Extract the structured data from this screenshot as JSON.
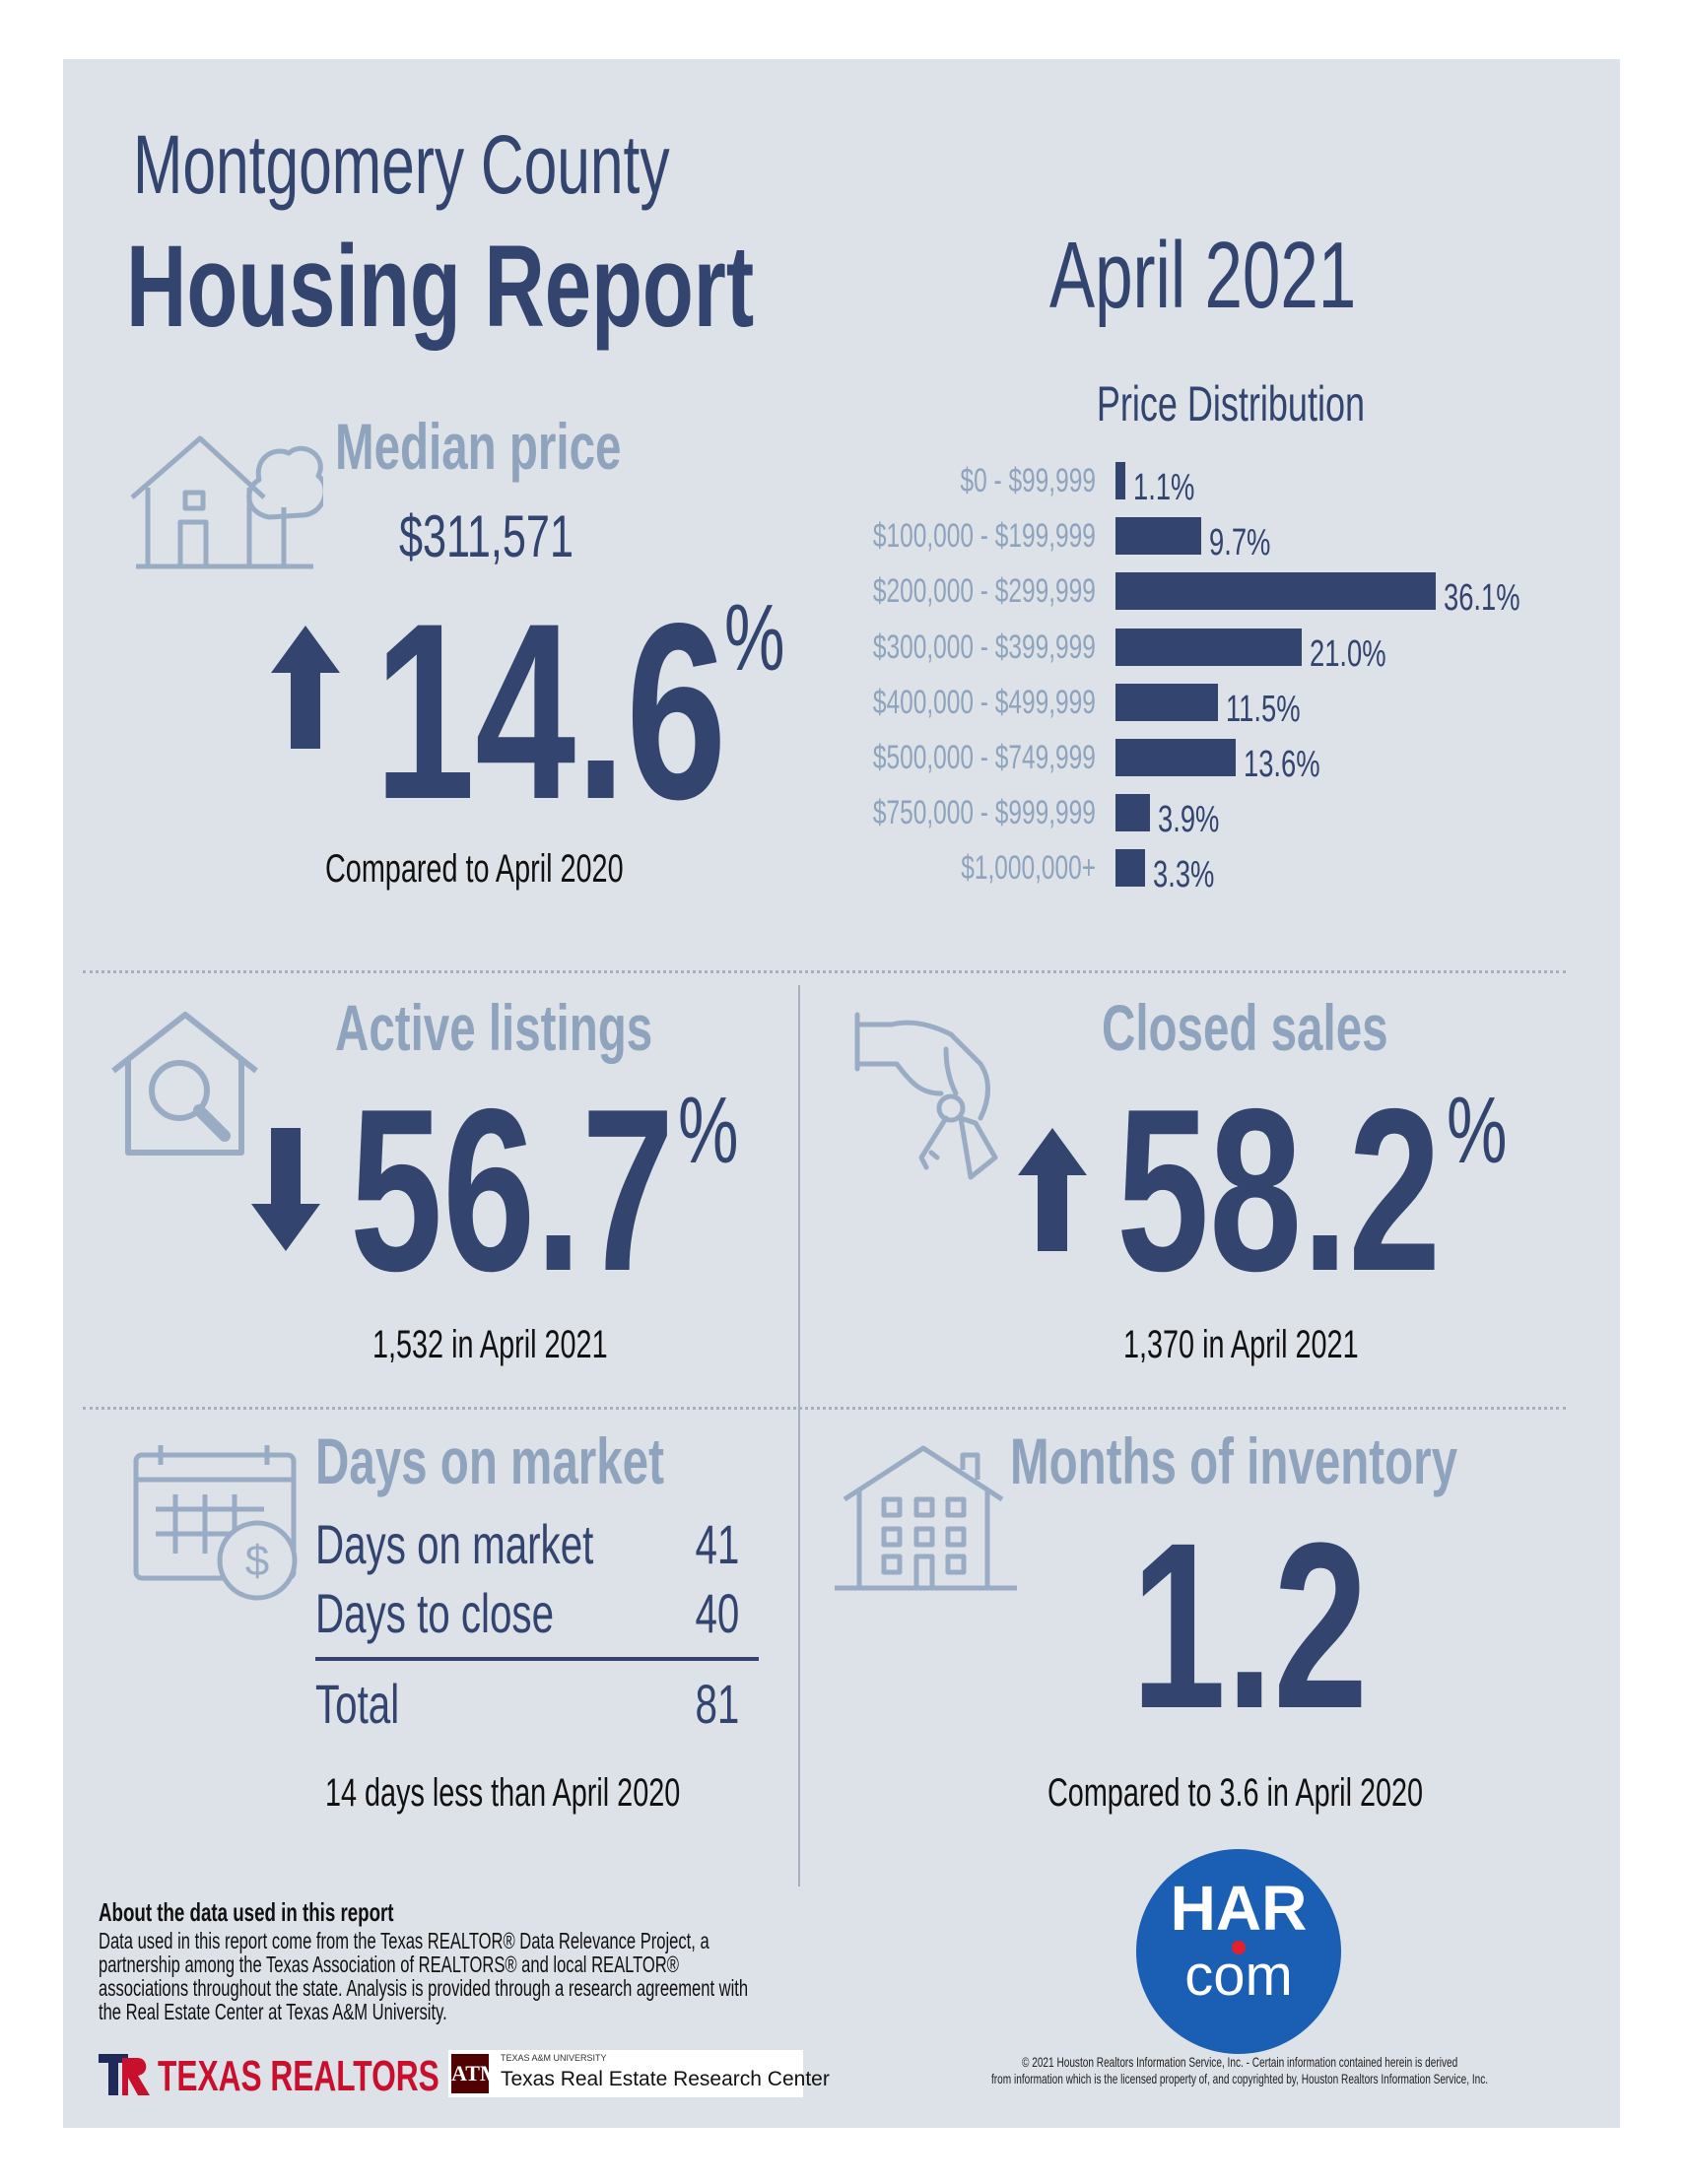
{
  "header": {
    "county": "Montgomery County",
    "report": "Housing Report",
    "period": "April 2021"
  },
  "median_price": {
    "title": "Median price",
    "value": "$311,571",
    "change": "14.6",
    "unit": "%",
    "direction": "up",
    "caption": "Compared to April 2020"
  },
  "price_distribution": {
    "title": "Price Distribution"
  },
  "chart_data": {
    "type": "bar",
    "orientation": "horizontal",
    "title": "Price Distribution",
    "categories": [
      "$0 - $99,999",
      "$100,000 - $199,999",
      "$200,000 - $299,999",
      "$300,000 - $399,999",
      "$400,000 - $499,999",
      "$500,000 - $749,999",
      "$750,000 - $999,999",
      "$1,000,000+"
    ],
    "values": [
      1.1,
      9.7,
      36.1,
      21.0,
      11.5,
      13.6,
      3.9,
      3.3
    ],
    "value_labels": [
      "1.1%",
      "9.7%",
      "36.1%",
      "21.0%",
      "11.5%",
      "13.6%",
      "3.9%",
      "3.3%"
    ],
    "bar_color": "#33446e",
    "grid": false
  },
  "active_listings": {
    "title": "Active listings",
    "change": "56.7",
    "unit": "%",
    "direction": "down",
    "caption": "1,532 in April 2021"
  },
  "closed_sales": {
    "title": "Closed sales",
    "change": "58.2",
    "unit": "%",
    "direction": "up",
    "caption": "1,370 in April 2021"
  },
  "days_on_market": {
    "title": "Days on market",
    "rows": [
      {
        "label": "Days on market",
        "value": "41"
      },
      {
        "label": "Days to close",
        "value": "40"
      }
    ],
    "total_label": "Total",
    "total_value": "81",
    "caption": "14 days less than April 2020"
  },
  "months_inventory": {
    "title": "Months of inventory",
    "value": "1.2",
    "caption": "Compared to 3.6 in April 2020"
  },
  "about": {
    "title": "About the data used in this report",
    "text": "Data used in this report come from the Texas REALTOR® Data Relevance Project, a partnership among the Texas Association of REALTORS® and local REALTOR® associations throughout the state. Analysis is provided through a research agreement with the Real Estate Center at Texas A&M University."
  },
  "logos": {
    "texas_realtors": "TEXAS REALTORS",
    "tamu_small": "TEXAS A&M UNIVERSITY",
    "tamu_center": "Texas Real Estate Research Center",
    "har_top": "HAR",
    "har_bottom": "com"
  },
  "copyright": {
    "line1": "© 2021 Houston Realtors Information Service, Inc. - Certain information contained herein is derived",
    "line2": "from information which is the licensed property of, and copyrighted by, Houston Realtors Information Service, Inc."
  },
  "colors": {
    "navy": "#33446e",
    "steel": "#8fa3bd",
    "panel": "#dde1e8",
    "har_blue": "#1a5fb4",
    "realtors_red": "#c8102e"
  }
}
